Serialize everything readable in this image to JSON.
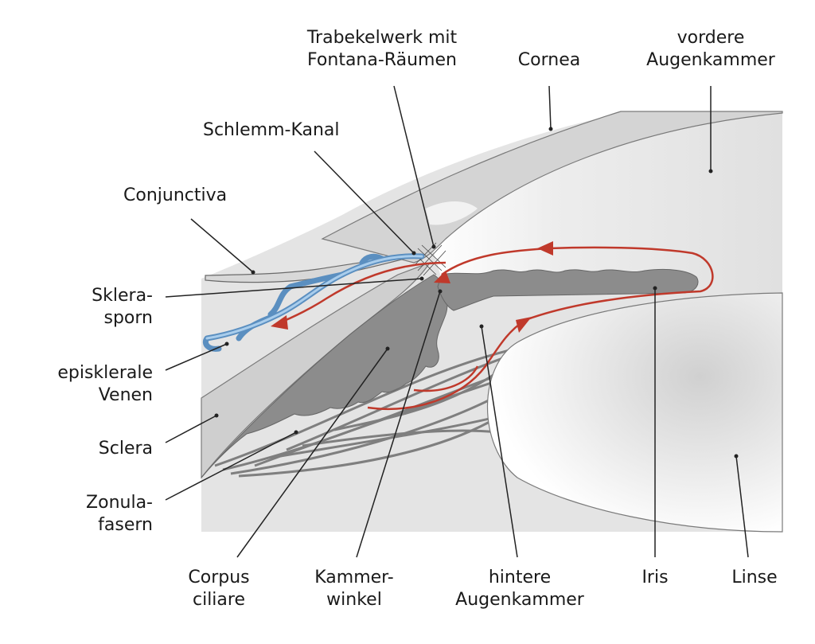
{
  "labels": {
    "trabekelwerk": [
      "Trabekelwerk mit",
      "Fontana-Räumen"
    ],
    "cornea": [
      "Cornea"
    ],
    "vordere_augenkammer": [
      "vordere",
      "Augenkammer"
    ],
    "schlemm_kanal": [
      "Schlemm-Kanal"
    ],
    "conjunctiva": [
      "Conjunctiva"
    ],
    "sklerasporn": [
      "Sklera-",
      "sporn"
    ],
    "episklerale_venen": [
      "episklerale",
      "Venen"
    ],
    "sclera": [
      "Sclera"
    ],
    "zonulafasern": [
      "Zonula-",
      "fasern"
    ],
    "corpus_ciliare": [
      "Corpus",
      "ciliare"
    ],
    "kammerwinkel": [
      "Kammer-",
      "winkel"
    ],
    "hintere_augenkammer": [
      "hintere",
      "Augenkammer"
    ],
    "iris": [
      "Iris"
    ],
    "linse": [
      "Linse"
    ]
  },
  "colors": {
    "aqueous_flow": "#c0392b",
    "veins": "#6ea8d8",
    "tissue_dark": "#8a8a8a",
    "tissue_mid": "#bdbdbd",
    "tissue_light": "#d9d9d9",
    "background_panel": "#e3e3e3"
  }
}
